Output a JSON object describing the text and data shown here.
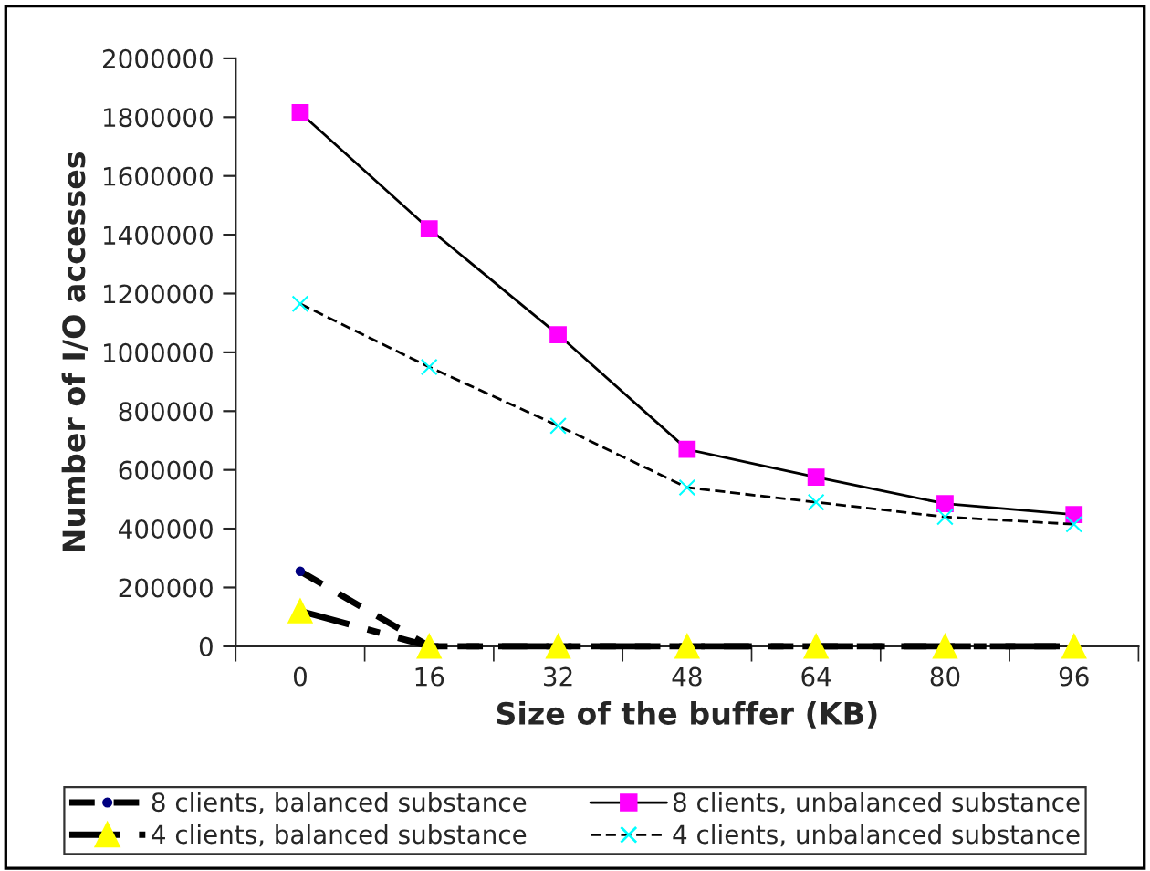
{
  "chart_data": {
    "type": "line",
    "xlabel": "Size of the buffer (KB)",
    "ylabel": "Number of I/O accesses",
    "categories": [
      "0",
      "16",
      "32",
      "48",
      "64",
      "80",
      "96"
    ],
    "ylim": [
      0,
      2000000
    ],
    "yticks": [
      0,
      200000,
      400000,
      600000,
      800000,
      1000000,
      1200000,
      1400000,
      1600000,
      1800000,
      2000000
    ],
    "grid": false,
    "legend": "bottom",
    "series": [
      {
        "name": "8 clients, balanced substance",
        "color": "#000080",
        "marker": "circle",
        "line_style": "dashed",
        "values": [
          255000,
          0,
          0,
          0,
          0,
          0,
          0
        ]
      },
      {
        "name": "8 clients, unbalanced substance",
        "color": "#ff00ff",
        "marker": "square",
        "line_style": "solid",
        "values": [
          1815000,
          1420000,
          1060000,
          670000,
          575000,
          485000,
          448000
        ]
      },
      {
        "name": "4 clients, balanced substance",
        "color": "#ffff00",
        "marker": "triangle",
        "line_style": "dashdot",
        "values": [
          120000,
          0,
          0,
          0,
          0,
          0,
          0
        ]
      },
      {
        "name": "4 clients, unbalanced substance",
        "color": "#00ffff",
        "marker": "cross",
        "line_style": "dashed",
        "values": [
          1165000,
          950000,
          750000,
          540000,
          490000,
          440000,
          415000
        ]
      }
    ]
  }
}
